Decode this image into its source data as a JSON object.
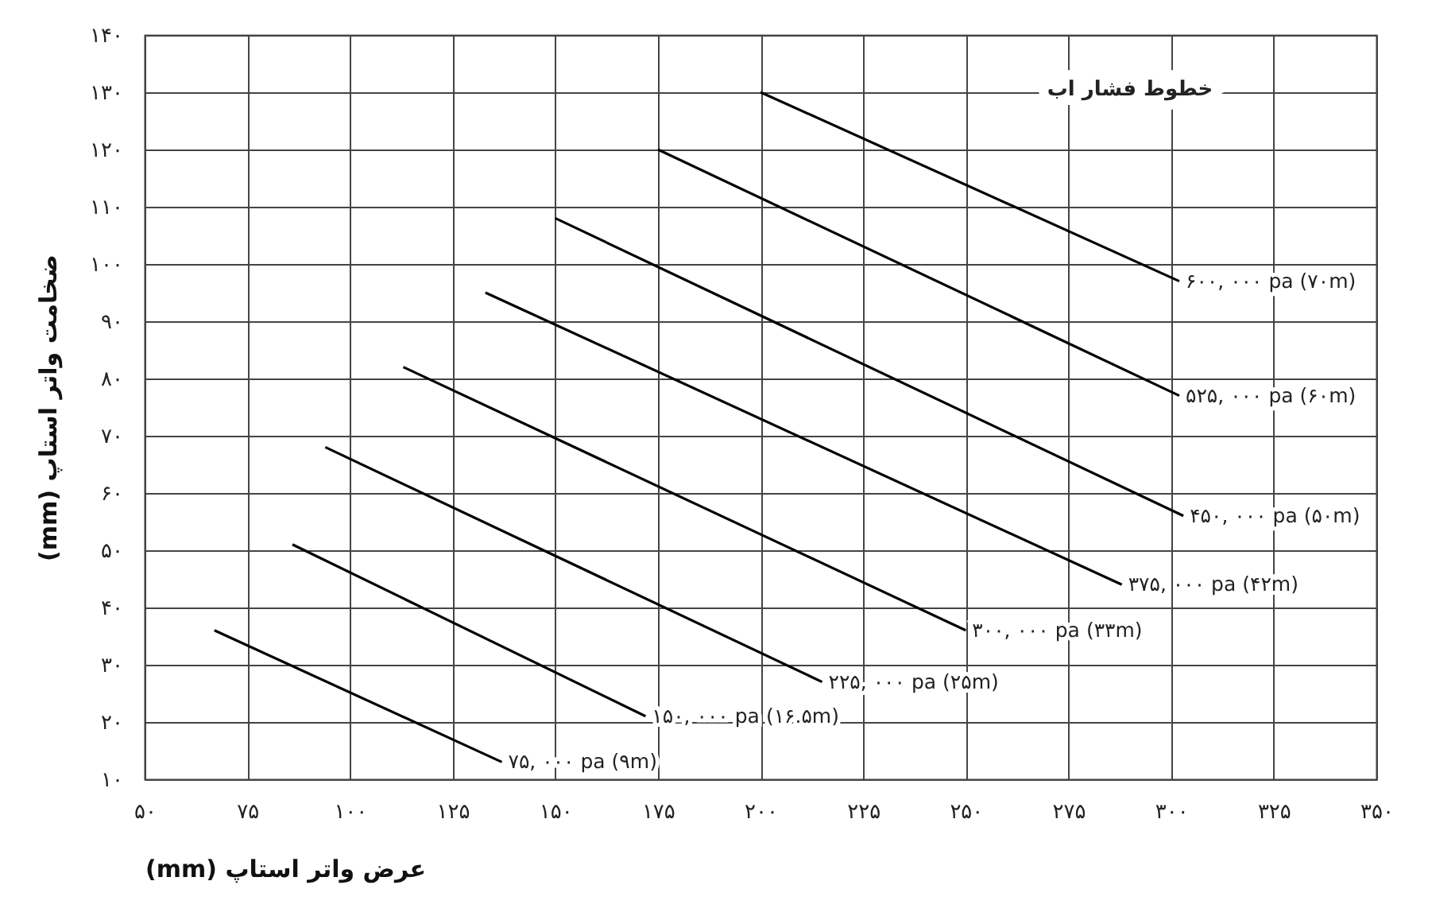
{
  "chart_data": {
    "type": "line",
    "xlabel": "عرض واتر استاپ (mm)",
    "ylabel": "ضخامت واتر استاپ (mm)",
    "xlim": [
      50,
      350
    ],
    "ylim": [
      10,
      140
    ],
    "xticks": [
      {
        "value": 50,
        "label": "۵۰"
      },
      {
        "value": 75,
        "label": "۷۵"
      },
      {
        "value": 100,
        "label": "۱۰۰"
      },
      {
        "value": 125,
        "label": "۱۲۵"
      },
      {
        "value": 150,
        "label": "۱۵۰"
      },
      {
        "value": 175,
        "label": "۱۷۵"
      },
      {
        "value": 200,
        "label": "۲۰۰"
      },
      {
        "value": 225,
        "label": "۲۲۵"
      },
      {
        "value": 250,
        "label": "۲۵۰"
      },
      {
        "value": 275,
        "label": "۲۷۵"
      },
      {
        "value": 300,
        "label": "۳۰۰"
      },
      {
        "value": 325,
        "label": "۳۲۵"
      },
      {
        "value": 350,
        "label": "۳۵۰"
      }
    ],
    "yticks": [
      {
        "value": 10,
        "label": "۱۰"
      },
      {
        "value": 20,
        "label": "۲۰"
      },
      {
        "value": 30,
        "label": "۳۰"
      },
      {
        "value": 40,
        "label": "۴۰"
      },
      {
        "value": 50,
        "label": "۵۰"
      },
      {
        "value": 60,
        "label": "۶۰"
      },
      {
        "value": 70,
        "label": "۷۰"
      },
      {
        "value": 80,
        "label": "۸۰"
      },
      {
        "value": 90,
        "label": "۹۰"
      },
      {
        "value": 100,
        "label": "۱۰۰"
      },
      {
        "value": 110,
        "label": "۱۱۰"
      },
      {
        "value": 120,
        "label": "۱۲۰"
      },
      {
        "value": 130,
        "label": "۱۳۰"
      },
      {
        "value": 140,
        "label": "۱۴۰"
      }
    ],
    "grid": true,
    "marker": "none",
    "line_style": "solid",
    "annotations": [
      "خطوط فشار اب"
    ],
    "series": [
      {
        "name": "۷۵, ۰۰۰ pa (۹m)",
        "color": "#000000",
        "x": [
          67,
          137
        ],
        "values": [
          36,
          13
        ]
      },
      {
        "name": "۱۵۰, ۰۰۰ pa (۱۶.۵m)",
        "color": "#000000",
        "x": [
          86,
          172
        ],
        "values": [
          51,
          21
        ]
      },
      {
        "name": "۲۲۵, ۰۰۰ pa (۲۵m)",
        "color": "#000000",
        "x": [
          94,
          215
        ],
        "values": [
          68,
          27
        ]
      },
      {
        "name": "۳۰۰, ۰۰۰ pa (۳۳m)",
        "color": "#000000",
        "x": [
          113,
          250
        ],
        "values": [
          82,
          36
        ]
      },
      {
        "name": "۳۷۵, ۰۰۰ pa (۴۲m)",
        "color": "#000000",
        "x": [
          133,
          288
        ],
        "values": [
          95,
          44
        ]
      },
      {
        "name": "۴۵۰, ۰۰۰ pa (۵۰m)",
        "color": "#000000",
        "x": [
          150,
          303
        ],
        "values": [
          108,
          56
        ]
      },
      {
        "name": "۵۲۵, ۰۰۰ pa (۶۰m)",
        "color": "#000000",
        "x": [
          175,
          302
        ],
        "values": [
          120,
          77
        ]
      },
      {
        "name": "۶۰۰, ۰۰۰ pa (۷۰m)",
        "color": "#000000",
        "x": [
          200,
          302
        ],
        "values": [
          130,
          97
        ]
      }
    ]
  }
}
